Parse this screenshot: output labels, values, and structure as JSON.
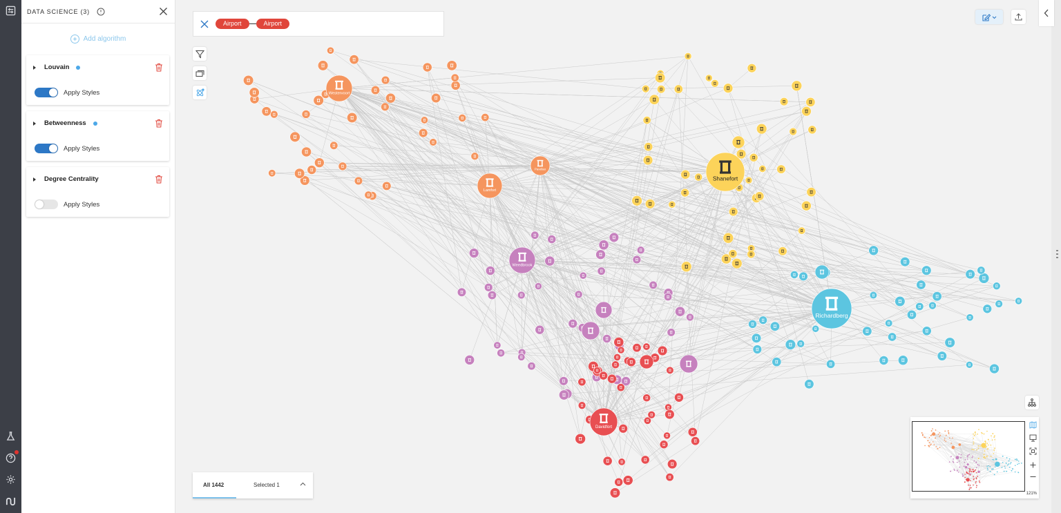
{
  "panel": {
    "title": "DATA SCIENCE (3)",
    "add_label": "Add algorithm",
    "algorithms": [
      {
        "name": "Louvain",
        "apply_label": "Apply Styles",
        "applied": true,
        "modified": true
      },
      {
        "name": "Betweenness",
        "apply_label": "Apply Styles",
        "applied": true,
        "modified": true
      },
      {
        "name": "Degree Centrality",
        "apply_label": "Apply Styles",
        "applied": false,
        "modified": false
      }
    ]
  },
  "search": {
    "pills": [
      "Airport",
      "Airport"
    ]
  },
  "counts": {
    "all": "All 1442",
    "selected": "Selected 1"
  },
  "minimap": {
    "zoom": "121%"
  },
  "colors": {
    "orange": "#f5955e",
    "yellow": "#fcd35a",
    "blue": "#5cc5e0",
    "purple": "#c681be",
    "red": "#e84f52",
    "accent": "#2d78c6"
  },
  "graph": {
    "hubs": [
      {
        "label": "Westervoort",
        "community": "orange"
      },
      {
        "label": "Lamfort",
        "community": "orange"
      },
      {
        "label": "Pavelao",
        "community": "orange"
      },
      {
        "label": "Shanefort",
        "community": "yellow"
      },
      {
        "label": "Richardberg",
        "community": "blue"
      },
      {
        "label": "Weedbrook",
        "community": "purple"
      },
      {
        "label": "Davidfort",
        "community": "red"
      }
    ]
  }
}
